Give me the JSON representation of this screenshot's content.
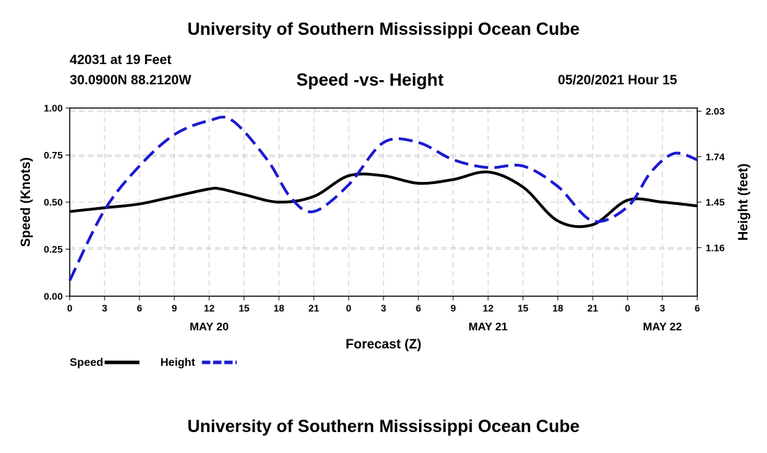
{
  "page": {
    "title_top": "University of Southern Mississippi Ocean Cube",
    "title_bottom": "University of Southern Mississippi Ocean Cube",
    "station_id": "42031 at 19 Feet",
    "station_location": "30.0900N  88.2120W",
    "date_label": "05/20/2021 Hour 15"
  },
  "chart_data": {
    "type": "line",
    "title": "Speed -vs- Height",
    "xlabel": "Forecast (Z)",
    "ylabel_left": "Speed (Knots)",
    "ylabel_right": "Height (feet)",
    "x_tick_labels": [
      "0",
      "3",
      "6",
      "9",
      "12",
      "15",
      "18",
      "21",
      "0",
      "3",
      "6",
      "9",
      "12",
      "15",
      "18",
      "21",
      "0",
      "3",
      "6"
    ],
    "date_labels": [
      {
        "label": "MAY 20",
        "at_hour": 12
      },
      {
        "label": "MAY 21",
        "at_hour": 36
      },
      {
        "label": "MAY 22",
        "at_hour": 51
      }
    ],
    "xlim": [
      0,
      54
    ],
    "ylim_left": [
      0,
      1.0
    ],
    "yticks_left": [
      "0.00",
      "0.25",
      "0.50",
      "0.75",
      "1.00"
    ],
    "ylim_right": [
      0.85,
      2.05
    ],
    "yticks_right": [
      1.16,
      1.45,
      1.74,
      2.03
    ],
    "grid": true,
    "legend_placement": "bottom-left",
    "series": [
      {
        "name": "Speed",
        "axis": "left",
        "color": "#000000",
        "dash": false,
        "x": [
          0,
          3,
          6,
          9,
          12,
          13,
          15,
          18,
          21,
          24,
          27,
          30,
          33,
          36,
          39,
          42,
          45,
          48,
          51,
          54
        ],
        "y": [
          0.45,
          0.47,
          0.49,
          0.53,
          0.57,
          0.57,
          0.54,
          0.5,
          0.53,
          0.64,
          0.64,
          0.6,
          0.62,
          0.66,
          0.58,
          0.4,
          0.38,
          0.51,
          0.5,
          0.48
        ]
      },
      {
        "name": "Height",
        "axis": "right",
        "color": "#1a1ad0",
        "dash": true,
        "x": [
          0,
          3,
          6,
          9,
          12,
          14,
          17,
          19,
          21,
          24,
          27,
          30,
          33,
          36,
          39,
          42,
          45,
          48,
          50,
          52,
          54
        ],
        "y": [
          0.95,
          1.4,
          1.68,
          1.88,
          1.97,
          1.97,
          1.72,
          1.48,
          1.39,
          1.56,
          1.83,
          1.83,
          1.72,
          1.67,
          1.68,
          1.55,
          1.33,
          1.42,
          1.64,
          1.76,
          1.72
        ]
      }
    ]
  }
}
